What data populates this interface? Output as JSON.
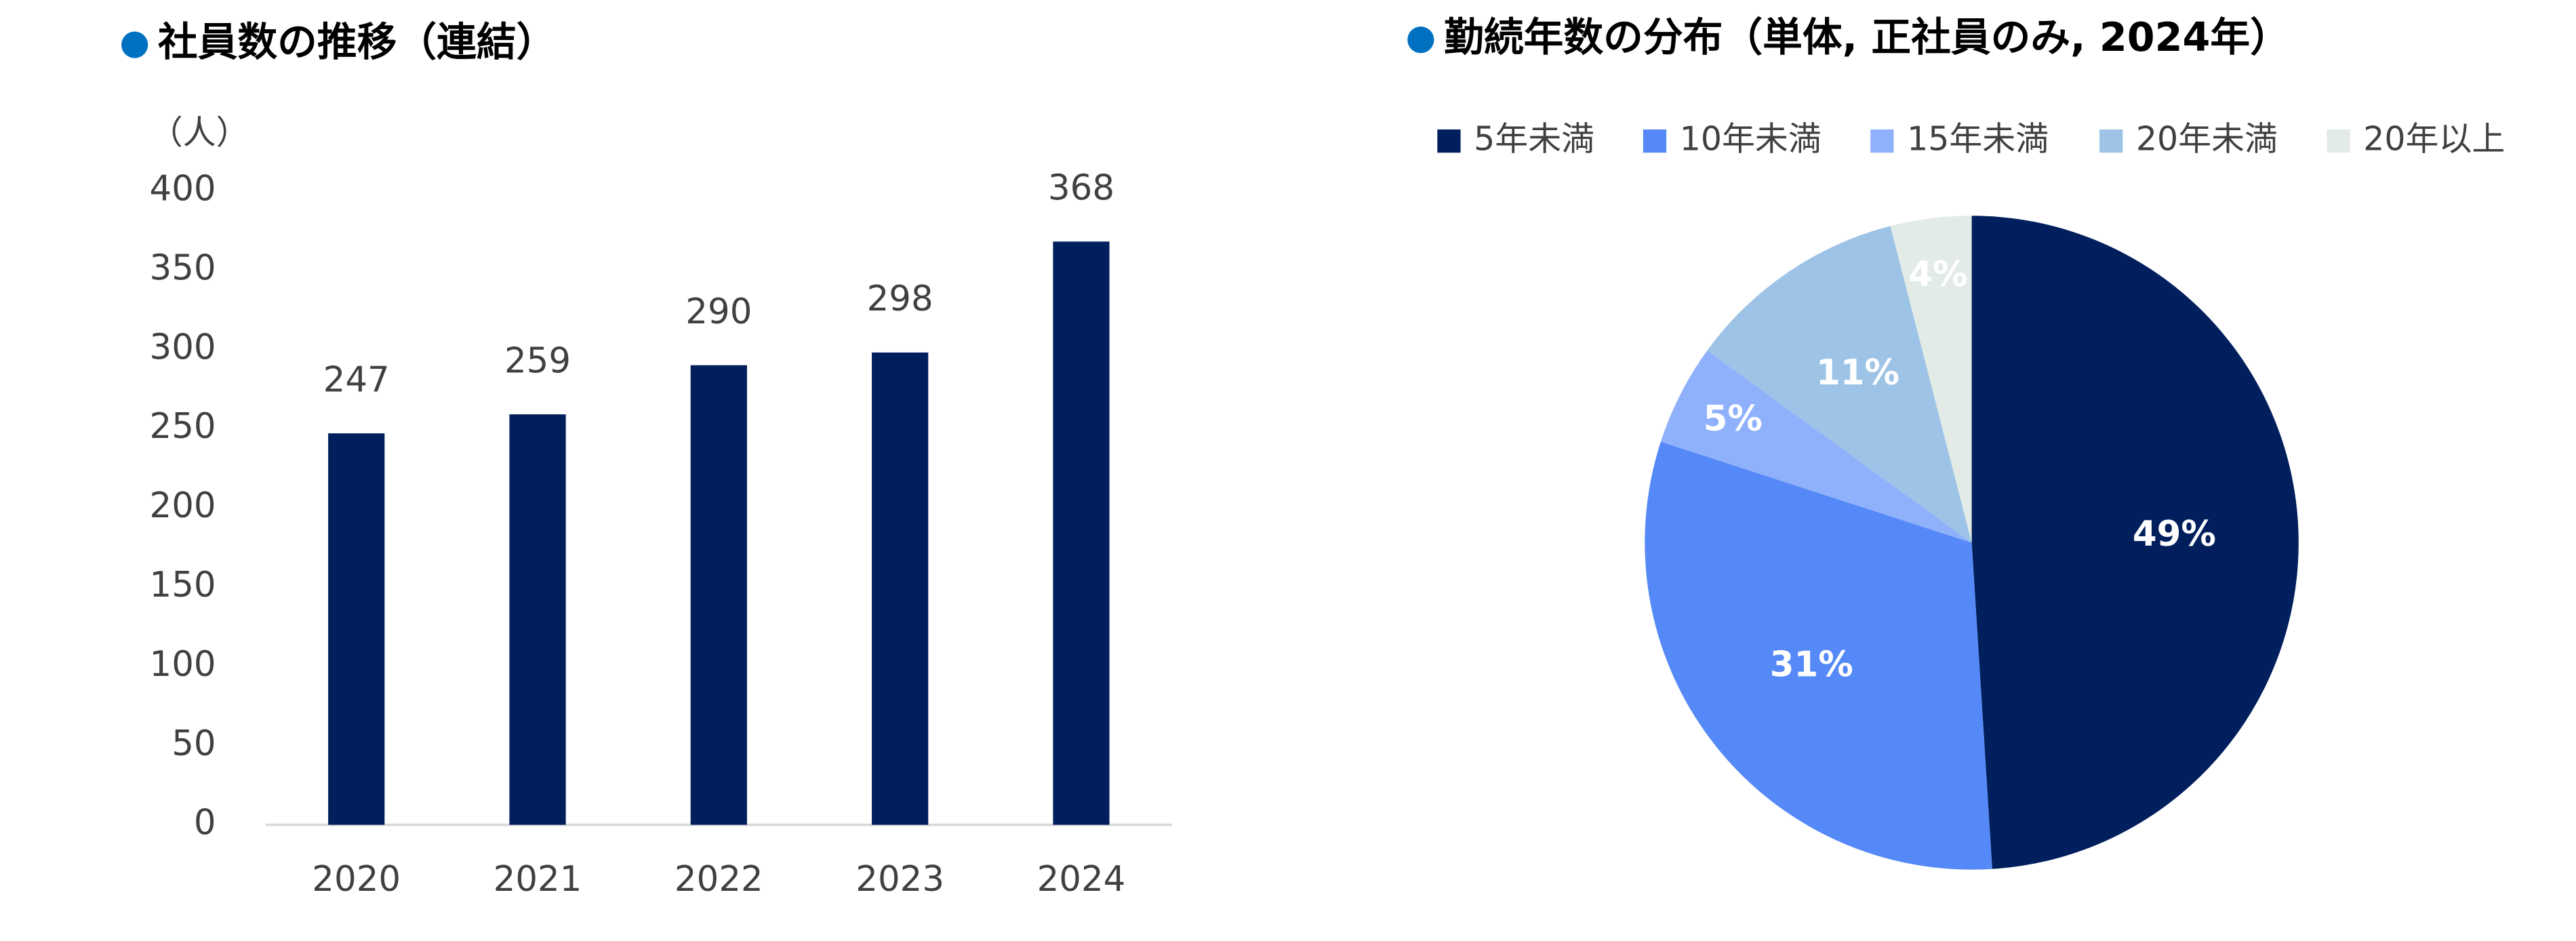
{
  "chart_data": [
    {
      "type": "bar",
      "title": "社員数の推移（連結）",
      "y_label": "（人）",
      "categories": [
        "2020",
        "2021",
        "2022",
        "2023",
        "2024"
      ],
      "values": [
        247,
        259,
        290,
        298,
        368
      ],
      "color": "#001f5c",
      "ylim": [
        0,
        400
      ],
      "yticks": [
        0,
        50,
        100,
        150,
        200,
        250,
        300,
        350,
        400
      ],
      "grid": false
    },
    {
      "type": "pie",
      "title": "勤続年数の分布（単体, 正社員のみ, 2024年）",
      "categories": [
        "5年未満",
        "10年未満",
        "15年未満",
        "20年未満",
        "20年以上"
      ],
      "values": [
        49,
        31,
        5,
        11,
        4
      ],
      "value_labels": [
        "49%",
        "31%",
        "5%",
        "11%",
        "4%"
      ],
      "colors": [
        "#001f5c",
        "#5589f7",
        "#8fb1fb",
        "#9dc3e6",
        "#e2ebe6"
      ],
      "legend": "top"
    }
  ]
}
